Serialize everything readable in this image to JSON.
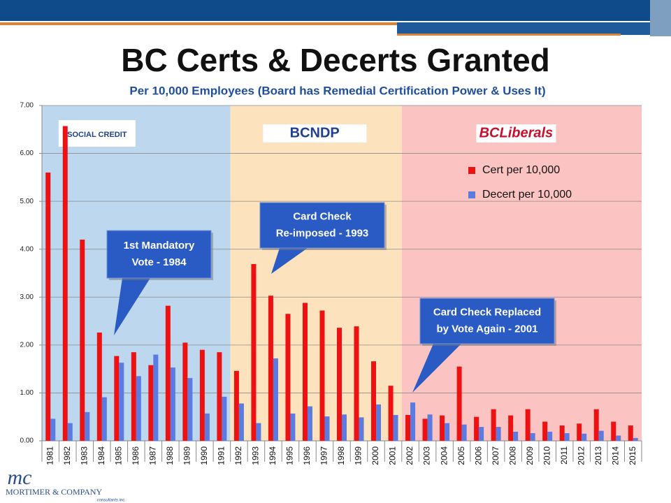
{
  "chart_data": {
    "type": "bar",
    "title": "BC Certs & Decerts Granted",
    "subtitle": "Per 10,000 Employees (Board has Remedial Certification Power & Uses It)",
    "categories": [
      "1981",
      "1982",
      "1983",
      "1984",
      "1985",
      "1986",
      "1987",
      "1988",
      "1989",
      "1990",
      "1991",
      "1992",
      "1993",
      "1994",
      "1995",
      "1996",
      "1997",
      "1998",
      "1999",
      "2000",
      "2001",
      "2002",
      "2003",
      "2004",
      "2005",
      "2006",
      "2007",
      "2008",
      "2009",
      "2010",
      "2011",
      "2012",
      "2013",
      "2014",
      "2015"
    ],
    "series": [
      {
        "name": "Cert per 10,000",
        "color": "#ee1111",
        "values": [
          5.6,
          6.57,
          4.2,
          2.26,
          1.77,
          1.85,
          1.58,
          2.82,
          2.05,
          1.9,
          1.85,
          1.46,
          3.69,
          3.03,
          2.65,
          2.88,
          2.72,
          2.36,
          2.39,
          1.66,
          1.15,
          0.54,
          0.46,
          0.53,
          1.55,
          0.5,
          0.66,
          0.53,
          0.66,
          0.4,
          0.32,
          0.36,
          0.66,
          0.4,
          0.32
        ]
      },
      {
        "name": "Decert per 10,000",
        "color": "#5b7be0",
        "values": [
          0.46,
          0.37,
          0.6,
          0.91,
          1.63,
          1.35,
          1.8,
          1.53,
          1.31,
          0.57,
          0.92,
          0.78,
          0.37,
          1.72,
          0.57,
          0.72,
          0.51,
          0.55,
          0.49,
          0.76,
          0.54,
          0.8,
          0.55,
          0.37,
          0.34,
          0.29,
          0.29,
          0.19,
          0.16,
          0.19,
          0.16,
          0.15,
          0.21,
          0.11,
          0.06
        ]
      }
    ],
    "ylim": [
      0,
      7
    ],
    "yticks": [
      {
        "value": 0,
        "label": "0.00"
      },
      {
        "value": 1,
        "label": "1.00"
      },
      {
        "value": 2,
        "label": "2.00"
      },
      {
        "value": 3,
        "label": "3.00"
      },
      {
        "value": 4,
        "label": "4.00"
      },
      {
        "value": 5,
        "label": "5.00"
      },
      {
        "value": 6,
        "label": "6.00"
      },
      {
        "value": 7,
        "label": "7.00"
      }
    ],
    "grid": true,
    "legend": "upper right",
    "regions": [
      {
        "from": "1981",
        "to": "1991",
        "color": "#bdd7ee",
        "logo": "SOCIAL CREDIT"
      },
      {
        "from": "1992",
        "to": "2001",
        "color": "#fde3bd",
        "logo": "BCNDP"
      },
      {
        "from": "2002",
        "to": "2015",
        "color": "#fcc3c3",
        "logo": "BCLiberals"
      }
    ],
    "annotations": [
      {
        "lines": [
          "1st Mandatory",
          "Vote - 1984"
        ]
      },
      {
        "lines": [
          "Card Check",
          "Re-imposed  - 1993"
        ]
      },
      {
        "lines": [
          "Card Check Replaced",
          "by Vote Again - 2001"
        ]
      }
    ]
  },
  "footer": {
    "logo": "mc",
    "name": "MORTIMER & COMPANY",
    "tagline": "consultants inc."
  }
}
